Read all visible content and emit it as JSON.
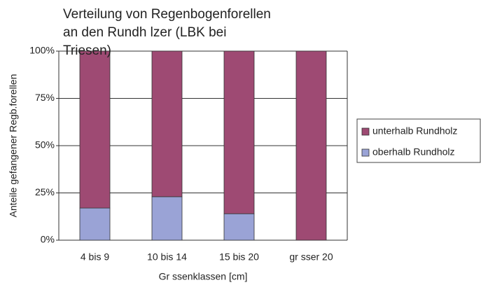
{
  "chart_data": {
    "type": "stacked_bar_100",
    "title": "Verteilung von Regenbogenforellen an den Rundh lzer (LBK bei Triesen)",
    "y_label": "Anteile gefangener Regb.forellen",
    "x_label": "Gr ssenklassen [cm]",
    "categories": [
      "4 bis 9",
      "10 bis 14",
      "15 bis 20",
      "gr sser 20"
    ],
    "series": [
      {
        "name": "oberhalb Rundholz",
        "color": "#9aa3d6",
        "values": [
          17,
          23,
          14,
          0
        ]
      },
      {
        "name": "unterhalb Rundholz",
        "color": "#9e4a73",
        "values": [
          83,
          77,
          86,
          100
        ]
      }
    ],
    "ylim": [
      0,
      100
    ],
    "yticks": [
      {
        "value": 0,
        "label": "0%"
      },
      {
        "value": 25,
        "label": "25%"
      },
      {
        "value": 50,
        "label": "50%"
      },
      {
        "value": 75,
        "label": "75%"
      },
      {
        "value": 100,
        "label": "100%"
      }
    ],
    "grid": true,
    "legend": "right"
  }
}
